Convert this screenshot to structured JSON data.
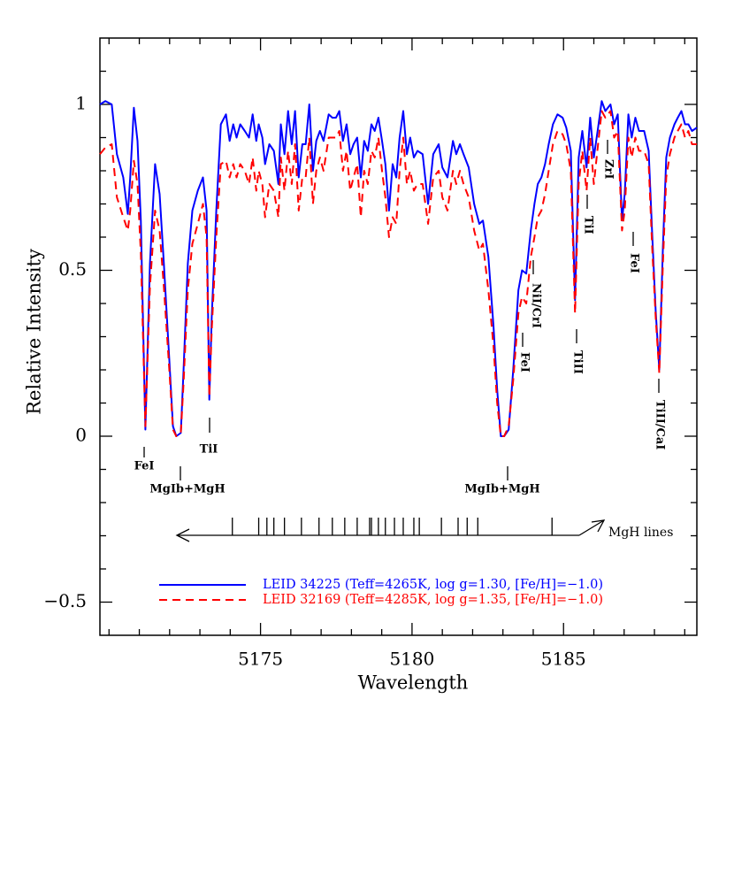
{
  "chart_data": {
    "type": "line",
    "x_label": "Wavelength",
    "y_label": "Relative Intensity",
    "xlim": [
      5169.7,
      5189.4
    ],
    "ylim": [
      -0.6,
      1.2
    ],
    "xticks": [
      5175,
      5180,
      5185
    ],
    "yticks": [
      {
        "value": -0.5,
        "label": "−0.5"
      },
      0,
      0.5,
      1
    ],
    "xminorticks": [
      5170,
      5171,
      5172,
      5173,
      5174,
      5176,
      5177,
      5178,
      5179,
      5181,
      5182,
      5183,
      5184,
      5186,
      5187,
      5188,
      5189
    ],
    "yminorticks": [
      -0.4,
      -0.3,
      -0.2,
      -0.1,
      0.1,
      0.2,
      0.3,
      0.4,
      0.6,
      0.7,
      0.8,
      0.9,
      1.1
    ],
    "x": [
      5169.7,
      5169.88,
      5170.09,
      5170.26,
      5170.47,
      5170.62,
      5170.7,
      5170.82,
      5170.94,
      5171.05,
      5171.2,
      5171.35,
      5171.52,
      5171.67,
      5171.81,
      5171.99,
      5172.11,
      5172.22,
      5172.37,
      5172.46,
      5172.6,
      5172.75,
      5172.93,
      5173.1,
      5173.22,
      5173.31,
      5173.39,
      5173.54,
      5173.69,
      5173.86,
      5173.98,
      5174.1,
      5174.21,
      5174.33,
      5174.48,
      5174.62,
      5174.74,
      5174.86,
      5174.94,
      5175.06,
      5175.15,
      5175.29,
      5175.44,
      5175.59,
      5175.67,
      5175.79,
      5175.91,
      5176.03,
      5176.14,
      5176.26,
      5176.38,
      5176.49,
      5176.61,
      5176.73,
      5176.84,
      5176.96,
      5177.08,
      5177.25,
      5177.37,
      5177.49,
      5177.6,
      5177.72,
      5177.84,
      5177.96,
      5178.07,
      5178.19,
      5178.31,
      5178.42,
      5178.54,
      5178.66,
      5178.77,
      5178.89,
      5179.01,
      5179.12,
      5179.24,
      5179.36,
      5179.48,
      5179.59,
      5179.71,
      5179.83,
      5179.94,
      5180.06,
      5180.18,
      5180.35,
      5180.53,
      5180.7,
      5180.88,
      5181,
      5181.17,
      5181.35,
      5181.46,
      5181.58,
      5181.7,
      5181.87,
      5182.05,
      5182.22,
      5182.34,
      5182.52,
      5182.69,
      5182.81,
      5182.93,
      5183.04,
      5183.19,
      5183.34,
      5183.51,
      5183.63,
      5183.77,
      5183.92,
      5184.04,
      5184.15,
      5184.27,
      5184.39,
      5184.51,
      5184.65,
      5184.8,
      5184.97,
      5185.09,
      5185.24,
      5185.38,
      5185.5,
      5185.62,
      5185.76,
      5185.88,
      5186,
      5186.14,
      5186.26,
      5186.38,
      5186.55,
      5186.67,
      5186.79,
      5186.93,
      5187.02,
      5187.14,
      5187.25,
      5187.37,
      5187.49,
      5187.66,
      5187.81,
      5187.93,
      5188.04,
      5188.16,
      5188.28,
      5188.39,
      5188.51,
      5188.66,
      5188.77,
      5188.89,
      5189.01,
      5189.12,
      5189.24,
      5189.4
    ],
    "series": [
      {
        "name": "LEID 34225 (Teff=4265K, log g=1.30, [Fe/H]=−1.0)",
        "color": "#0000ff",
        "dash": false,
        "values": [
          1.0,
          1.01,
          1.0,
          0.85,
          0.78,
          0.67,
          0.78,
          0.99,
          0.89,
          0.65,
          0.02,
          0.52,
          0.82,
          0.73,
          0.52,
          0.23,
          0.03,
          0.0,
          0.01,
          0.2,
          0.52,
          0.68,
          0.74,
          0.78,
          0.68,
          0.11,
          0.36,
          0.68,
          0.94,
          0.97,
          0.89,
          0.94,
          0.9,
          0.94,
          0.92,
          0.9,
          0.97,
          0.89,
          0.94,
          0.9,
          0.82,
          0.88,
          0.86,
          0.76,
          0.94,
          0.85,
          0.98,
          0.88,
          0.98,
          0.78,
          0.88,
          0.88,
          1.0,
          0.8,
          0.89,
          0.92,
          0.89,
          0.97,
          0.96,
          0.96,
          0.98,
          0.89,
          0.94,
          0.85,
          0.88,
          0.9,
          0.78,
          0.89,
          0.86,
          0.94,
          0.92,
          0.96,
          0.89,
          0.82,
          0.68,
          0.82,
          0.78,
          0.9,
          0.98,
          0.85,
          0.9,
          0.84,
          0.86,
          0.85,
          0.7,
          0.85,
          0.88,
          0.81,
          0.78,
          0.89,
          0.85,
          0.88,
          0.85,
          0.81,
          0.7,
          0.64,
          0.65,
          0.54,
          0.33,
          0.14,
          0.0,
          0.0,
          0.02,
          0.2,
          0.44,
          0.5,
          0.49,
          0.62,
          0.7,
          0.76,
          0.78,
          0.82,
          0.88,
          0.94,
          0.97,
          0.96,
          0.93,
          0.86,
          0.41,
          0.84,
          0.92,
          0.81,
          0.96,
          0.84,
          0.93,
          1.01,
          0.98,
          1.0,
          0.94,
          0.97,
          0.65,
          0.73,
          0.97,
          0.9,
          0.96,
          0.92,
          0.92,
          0.86,
          0.6,
          0.38,
          0.2,
          0.57,
          0.84,
          0.9,
          0.94,
          0.96,
          0.98,
          0.94,
          0.94,
          0.92,
          0.93
        ]
      },
      {
        "name": "LEID 32169 (Teff=4285K, log g=1.35, [Fe/H]=−1.0)",
        "color": "#ff0000",
        "dash": true,
        "values": [
          0.85,
          0.87,
          0.88,
          0.72,
          0.66,
          0.62,
          0.68,
          0.83,
          0.76,
          0.55,
          0.03,
          0.45,
          0.68,
          0.62,
          0.45,
          0.2,
          0.02,
          0.0,
          0.01,
          0.16,
          0.44,
          0.58,
          0.64,
          0.7,
          0.6,
          0.12,
          0.32,
          0.6,
          0.82,
          0.83,
          0.78,
          0.82,
          0.78,
          0.82,
          0.8,
          0.76,
          0.84,
          0.74,
          0.8,
          0.76,
          0.66,
          0.76,
          0.74,
          0.66,
          0.84,
          0.74,
          0.86,
          0.76,
          0.88,
          0.68,
          0.78,
          0.78,
          0.9,
          0.7,
          0.8,
          0.84,
          0.8,
          0.9,
          0.9,
          0.9,
          0.92,
          0.8,
          0.86,
          0.74,
          0.78,
          0.82,
          0.66,
          0.8,
          0.76,
          0.86,
          0.84,
          0.9,
          0.8,
          0.72,
          0.6,
          0.66,
          0.64,
          0.8,
          0.9,
          0.76,
          0.8,
          0.74,
          0.76,
          0.76,
          0.64,
          0.78,
          0.8,
          0.72,
          0.68,
          0.8,
          0.76,
          0.8,
          0.76,
          0.72,
          0.62,
          0.56,
          0.58,
          0.44,
          0.27,
          0.1,
          0.0,
          0.0,
          0.03,
          0.17,
          0.37,
          0.42,
          0.4,
          0.54,
          0.6,
          0.66,
          0.68,
          0.73,
          0.8,
          0.88,
          0.92,
          0.91,
          0.88,
          0.8,
          0.37,
          0.76,
          0.86,
          0.74,
          0.9,
          0.76,
          0.88,
          0.98,
          0.96,
          0.98,
          0.9,
          0.92,
          0.62,
          0.68,
          0.9,
          0.84,
          0.9,
          0.86,
          0.86,
          0.82,
          0.56,
          0.36,
          0.19,
          0.52,
          0.78,
          0.85,
          0.9,
          0.92,
          0.94,
          0.9,
          0.92,
          0.88,
          0.88
        ]
      }
    ],
    "annotations": [
      "FeI",
      "MgIb+MgH",
      "TiI",
      "MgIb+MgH",
      "NiI/CrI",
      "FeI",
      "TiII",
      "TiI",
      "ZrI",
      "FeI",
      "TiII/CaI"
    ],
    "mgh_lines": {
      "label": "MgH lines",
      "x": [
        5174.07,
        5174.94,
        5175.21,
        5175.44,
        5175.79,
        5176.35,
        5176.93,
        5177.37,
        5177.78,
        5178.19,
        5178.6,
        5178.66,
        5178.89,
        5179.12,
        5179.42,
        5179.71,
        5180.06,
        5180.24,
        5180.97,
        5181.52,
        5181.82,
        5182.17,
        5184.62
      ]
    }
  }
}
